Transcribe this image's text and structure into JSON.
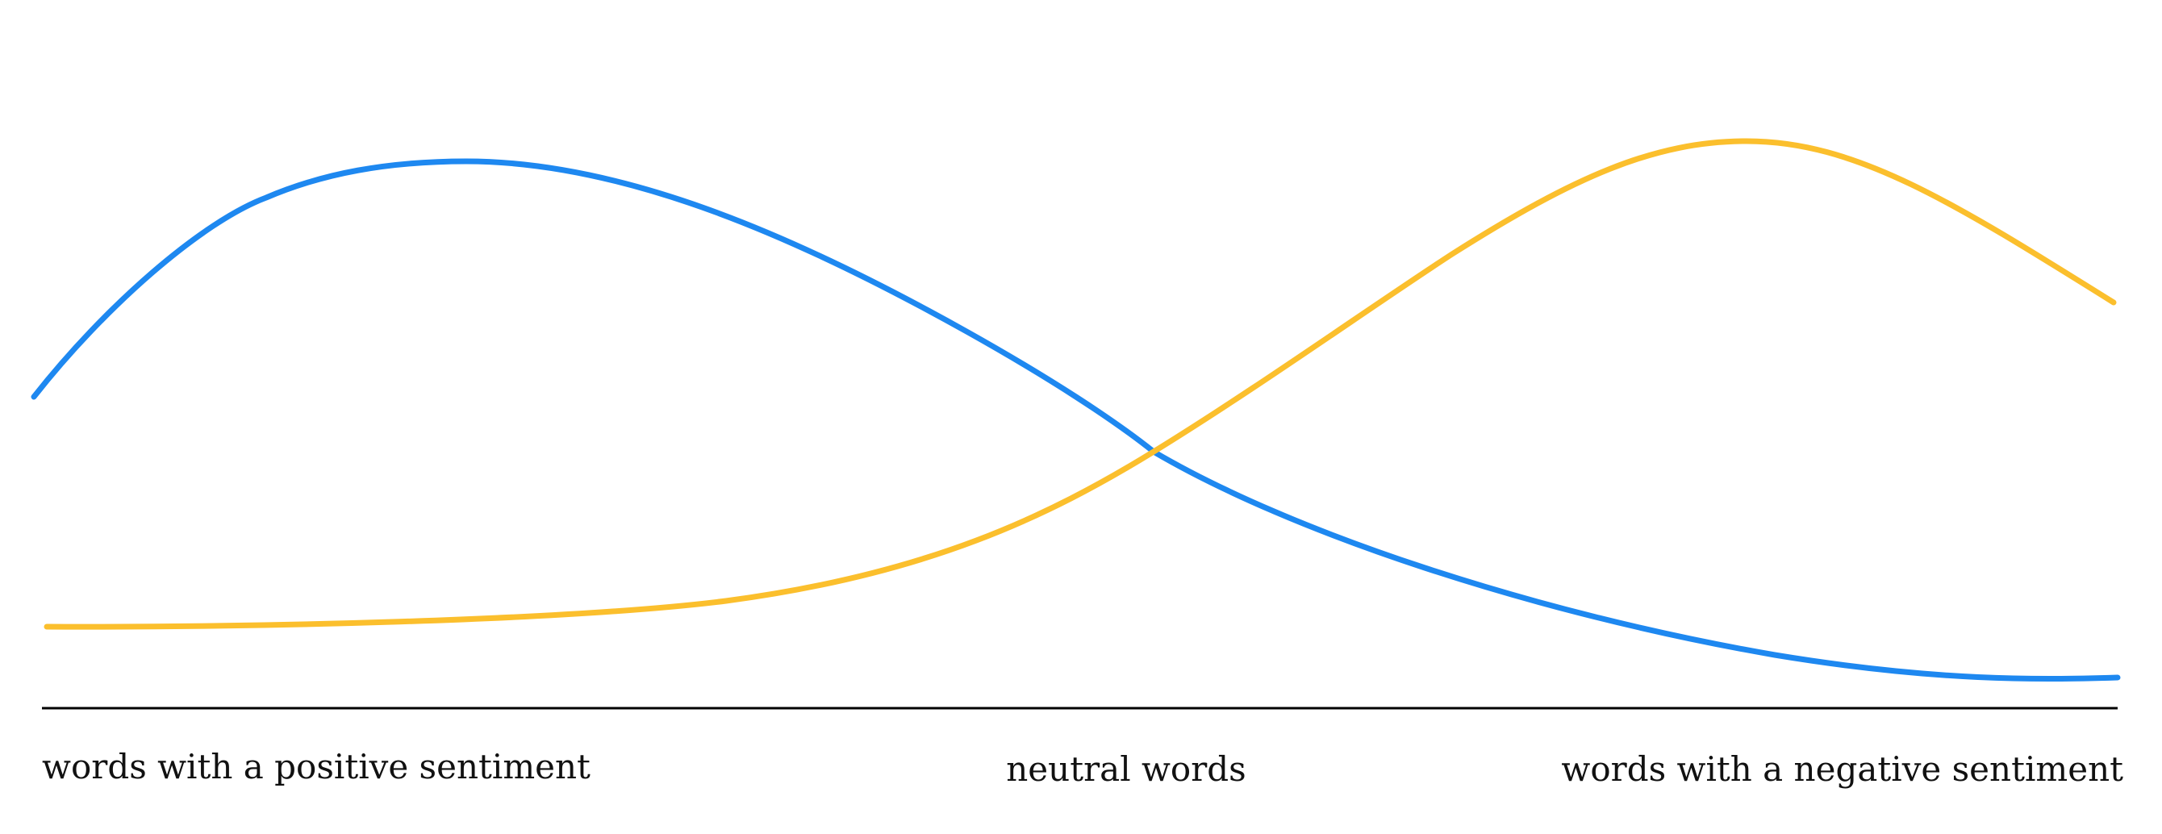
{
  "labels": {
    "left": "words with a positive sentiment",
    "center": "neutral words",
    "right": "words with a negative sentiment"
  },
  "colors": {
    "blue_curve": "#1e88f0",
    "yellow_curve": "#fbbf2d",
    "axis": "#000000"
  }
}
